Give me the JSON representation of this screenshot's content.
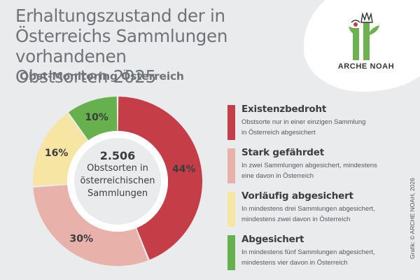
{
  "header": {
    "title_lines": [
      "Erhaltungszustand der in",
      "Österreichs Sammlungen vorhandenen",
      "Obstsorten 2025"
    ],
    "subtitle": "Obst-Monitoring Österreich"
  },
  "logo": {
    "text": "ARCHE NOAH"
  },
  "chart_data": {
    "type": "pie",
    "donut": true,
    "center": {
      "number": "2.506",
      "label_lines": [
        "Obstsorten in",
        "österreichischen",
        "Sammlungen"
      ]
    },
    "slices": [
      {
        "label": "Existenzbedroht",
        "value": 44,
        "display": "44%",
        "color": "#c53e47"
      },
      {
        "label": "Stark gefährdet",
        "value": 30,
        "display": "30%",
        "color": "#e8b2ab"
      },
      {
        "label": "Vorläufig abgesichert",
        "value": 16,
        "display": "16%",
        "color": "#f6e5a3"
      },
      {
        "label": "Abgesichert",
        "value": 10,
        "display": "10%",
        "color": "#66b04d"
      }
    ],
    "legend_placement": "right"
  },
  "legend": [
    {
      "title": "Existenzbedroht",
      "desc_lines": [
        "Obstsorte nur in einer einzigen Sammlung",
        "in Österreich abgesichert"
      ],
      "color": "#c53e47"
    },
    {
      "title": "Stark gefährdet",
      "desc_lines": [
        "In zwei Sammlungen abgesichert, mindestens",
        "eine davon in Österreich"
      ],
      "color": "#e8b2ab"
    },
    {
      "title": "Vorläufig abgesichert",
      "desc_lines": [
        "In mindestens drei Sammlungen abgesichert,",
        "mindestens zwei davon in Österreich"
      ],
      "color": "#f6e5a3"
    },
    {
      "title": "Abgesichert",
      "desc_lines": [
        "In mindestens fünf Sammlungen abgesichert,",
        "mindestens vier davon in Österreich"
      ],
      "color": "#66b04d"
    }
  ],
  "credit": "Grafik: © ARCHE NOAH, 2026"
}
